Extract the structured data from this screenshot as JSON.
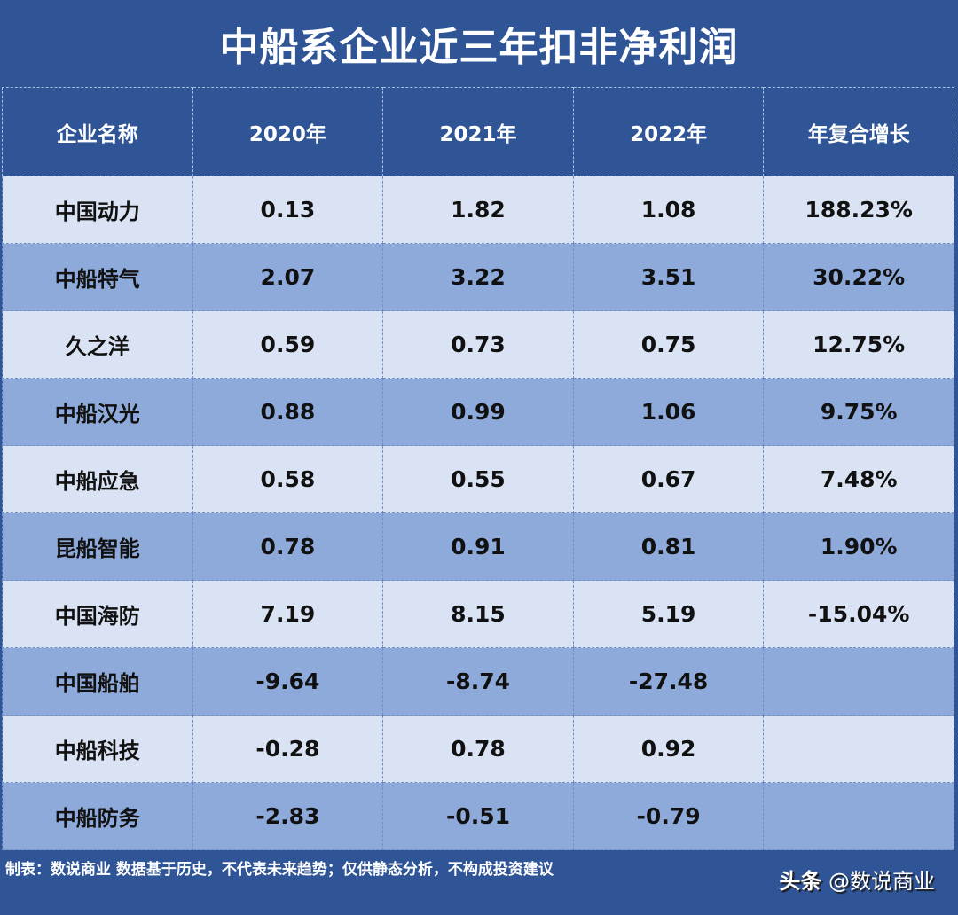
{
  "title": "中船系企业近三年扣非净利润",
  "table": {
    "headers": [
      "企业名称",
      "2020年",
      "2021年",
      "2022年",
      "年复合增长"
    ],
    "rows": [
      [
        "中国动力",
        "0.13",
        "1.82",
        "1.08",
        "188.23%"
      ],
      [
        "中船特气",
        "2.07",
        "3.22",
        "3.51",
        "30.22%"
      ],
      [
        "久之洋",
        "0.59",
        "0.73",
        "0.75",
        "12.75%"
      ],
      [
        "中船汉光",
        "0.88",
        "0.99",
        "1.06",
        "9.75%"
      ],
      [
        "中船应急",
        "0.58",
        "0.55",
        "0.67",
        "7.48%"
      ],
      [
        "昆船智能",
        "0.78",
        "0.91",
        "0.81",
        "1.90%"
      ],
      [
        "中国海防",
        "7.19",
        "8.15",
        "5.19",
        "-15.04%"
      ],
      [
        "中国船舶",
        "-9.64",
        "-8.74",
        "-27.48",
        ""
      ],
      [
        "中船科技",
        "-0.28",
        "0.78",
        "0.92",
        ""
      ],
      [
        "中船防务",
        "-2.83",
        "-0.51",
        "-0.79",
        ""
      ]
    ]
  },
  "footer": {
    "note": "制表：数说商业 数据基于历史，不代表未来趋势；仅供静态分析，不构成投资建议",
    "watermark_brand": "头条",
    "watermark_account": "@数说商业"
  },
  "colors": {
    "background": "#2f5597",
    "row_light": "#dae3f3",
    "row_dark": "#8eaadb"
  }
}
